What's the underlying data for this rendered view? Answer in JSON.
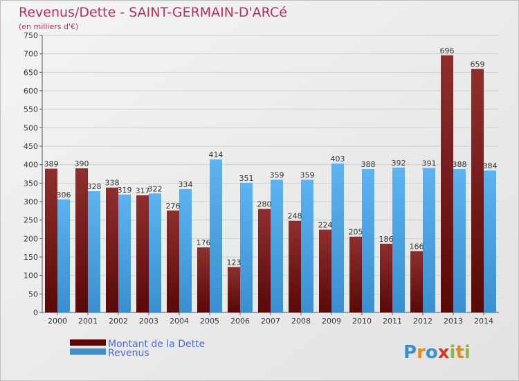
{
  "chart_data": {
    "type": "bar",
    "title": "Revenus/Dette - SAINT-GERMAIN-D'ARCé",
    "subtitle": "(en milliers d'€)",
    "categories": [
      "2000",
      "2001",
      "2002",
      "2003",
      "2004",
      "2005",
      "2006",
      "2007",
      "2008",
      "2009",
      "2010",
      "2011",
      "2012",
      "2013",
      "2014"
    ],
    "series": [
      {
        "name": "Montant de la Dette",
        "color": "#7a1515",
        "values": [
          389,
          390,
          338,
          317,
          276,
          176,
          123,
          280,
          248,
          224,
          205,
          186,
          166,
          696,
          659
        ]
      },
      {
        "name": "Revenus",
        "color": "#4aa3e6",
        "values": [
          306,
          328,
          319,
          322,
          334,
          414,
          351,
          359,
          359,
          403,
          388,
          392,
          391,
          388,
          384
        ]
      }
    ],
    "ylim": [
      0,
      750
    ],
    "yticks": [
      0,
      50,
      100,
      150,
      200,
      250,
      300,
      350,
      400,
      450,
      500,
      550,
      600,
      650,
      700,
      750
    ],
    "grid": true,
    "legend_position": "bottom-left"
  },
  "logo": {
    "text": "Proxiti",
    "letters": [
      "P",
      "r",
      "o",
      "x",
      "i",
      "t",
      "i"
    ]
  }
}
